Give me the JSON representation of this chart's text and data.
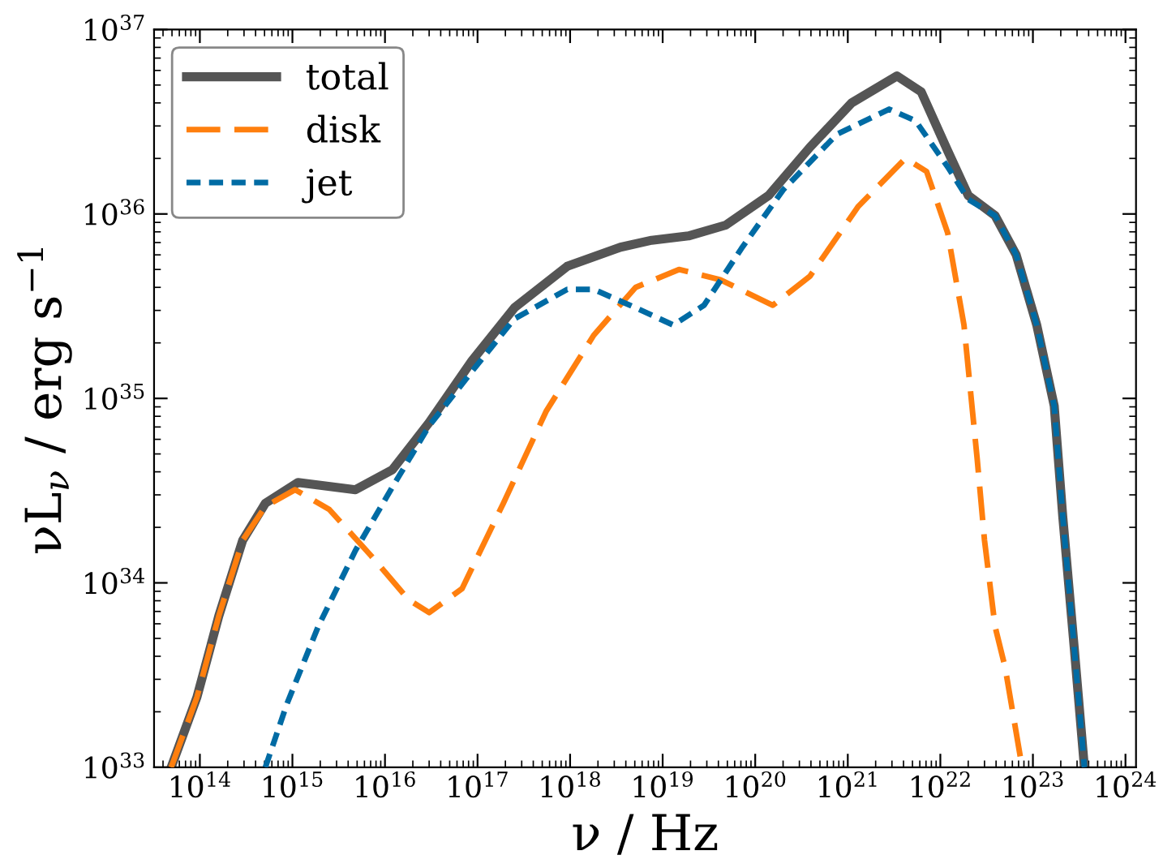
{
  "chart_data": {
    "type": "line",
    "xlabel": "ν / Hz",
    "ylabel": "νL$_{ν}$ / erg s$^{−1}$",
    "log": "xy",
    "grid": false,
    "legend": "top left",
    "marker": "none",
    "xlim": [
      32000000000000.0,
      1.3e+24
    ],
    "ylim": [
      1e+33,
      1e+37
    ],
    "xticks": [
      {
        "value": 100000000000000.0,
        "label": "10$^{14}$"
      },
      {
        "value": 1000000000000000.0,
        "label": "10$^{15}$"
      },
      {
        "value": 1e+16,
        "label": "10$^{16}$"
      },
      {
        "value": 1e+17,
        "label": "10$^{17}$"
      },
      {
        "value": 1e+18,
        "label": "10$^{18}$"
      },
      {
        "value": 1e+19,
        "label": "10$^{19}$"
      },
      {
        "value": 1e+20,
        "label": "10$^{20}$"
      },
      {
        "value": 1e+21,
        "label": "10$^{21}$"
      },
      {
        "value": 1e+22,
        "label": "10$^{22}$"
      },
      {
        "value": 1e+23,
        "label": "10$^{23}$"
      },
      {
        "value": 1e+24,
        "label": "10$^{24}$"
      }
    ],
    "yticks": [
      {
        "value": 1e+33,
        "label": "10$^{33}$"
      },
      {
        "value": 1e+34,
        "label": "10$^{34}$"
      },
      {
        "value": 1e+35,
        "label": "10$^{35}$"
      },
      {
        "value": 1e+36,
        "label": "10$^{36}$"
      },
      {
        "value": 1e+37,
        "label": "10$^{37}$"
      }
    ],
    "series": [
      {
        "name": "total",
        "color": "#555555",
        "line_style": "solid",
        "x": [
          49000000000000.0,
          93000000000000.0,
          160000000000000.0,
          290000000000000.0,
          510000000000000.0,
          1150000000000000.0,
          4800000000000000.0,
          1.2e+16,
          3e+16,
          8.7e+16,
          2.5e+17,
          9.3e+17,
          3.5e+18,
          7.6e+18,
          1.9e+19,
          4.8e+19,
          1.4e+20,
          3.9e+20,
          1.1e+21,
          3.4e+21,
          6.2e+21,
          1.2e+22,
          2e+22,
          3.9e+22,
          6.6e+22,
          1.1e+23,
          1.7e+23,
          2.1e+23,
          2.8e+23,
          3.6e+23
        ],
        "values": [
          1e+33,
          2.4e+33,
          6.6e+33,
          1.7e+34,
          2.7e+34,
          3.5e+34,
          3.2e+34,
          4.1e+34,
          7.4e+34,
          1.6e+35,
          3.1e+35,
          5.2e+35,
          6.6e+35,
          7.2e+35,
          7.6e+35,
          8.7e+35,
          1.26e+36,
          2.3e+36,
          4e+36,
          5.6e+36,
          4.6e+36,
          2.2e+36,
          1.26e+36,
          9.8e+35,
          6e+35,
          2.5e+35,
          9.1e+34,
          2.3e+34,
          4.4e+33,
          1e+33
        ]
      },
      {
        "name": "disk",
        "color": "#ff7f0e",
        "line_style": "dashed",
        "x": [
          49000000000000.0,
          93000000000000.0,
          160000000000000.0,
          290000000000000.0,
          510000000000000.0,
          1070000000000000.0,
          2500000000000000.0,
          7100000000000000.0,
          1.8e+16,
          3e+16,
          6.8e+16,
          1.9e+17,
          5.5e+17,
          1.8e+18,
          5.1e+18,
          1.5e+19,
          4.2e+19,
          1.55e+20,
          3.9e+20,
          1.3e+21,
          4.2e+21,
          7.1e+21,
          1.2e+22,
          1.8e+22,
          2.5e+22,
          3e+22,
          3.9e+22,
          5e+22,
          7.4e+22,
          7.9e+22
        ],
        "values": [
          1e+33,
          2.4e+33,
          6.6e+33,
          1.7e+34,
          2.6e+34,
          3.2e+34,
          2.5e+34,
          1.4e+34,
          8.1e+33,
          6.9e+33,
          9.3e+33,
          2.7e+34,
          8.5e+34,
          2.2e+35,
          4e+35,
          5e+35,
          4.4e+35,
          3.2e+35,
          4.6e+35,
          1.1e+36,
          2e+36,
          1.7e+36,
          7.9e+35,
          2.5e+35,
          4.7e+34,
          1.7e+34,
          5.8e+33,
          3.5e+33,
          1.1e+33,
          1e+33
        ]
      },
      {
        "name": "jet",
        "color": "#006ba4",
        "line_style": "dashed",
        "x": [
          510000000000000.0,
          870000000000000.0,
          1900000000000000.0,
          4800000000000000.0,
          1.2e+16,
          3e+16,
          8.7e+16,
          2.5e+17,
          9.3e+17,
          1.8e+18,
          5.1e+18,
          1.3e+19,
          2.8e+19,
          7.1e+19,
          2e+20,
          7.6e+20,
          2.8e+21,
          5.4e+21,
          1.2e+22,
          2e+22,
          3.9e+22,
          6.6e+22,
          1.1e+23,
          1.7e+23,
          2.1e+23,
          2.8e+23,
          3.6e+23
        ],
        "values": [
          1e+33,
          2.2e+33,
          5.8e+33,
          1.5e+34,
          3.3e+34,
          7.1e+34,
          1.4e+35,
          2.7e+35,
          3.9e+35,
          3.9e+35,
          3.1e+35,
          2.5e+35,
          3.2e+35,
          6.5e+35,
          1.35e+36,
          2.7e+36,
          3.7e+36,
          3.2e+36,
          1.8e+36,
          1.2e+36,
          9.8e+35,
          6e+35,
          2.5e+35,
          9.1e+34,
          2.3e+34,
          4.4e+33,
          1e+33
        ]
      }
    ]
  }
}
